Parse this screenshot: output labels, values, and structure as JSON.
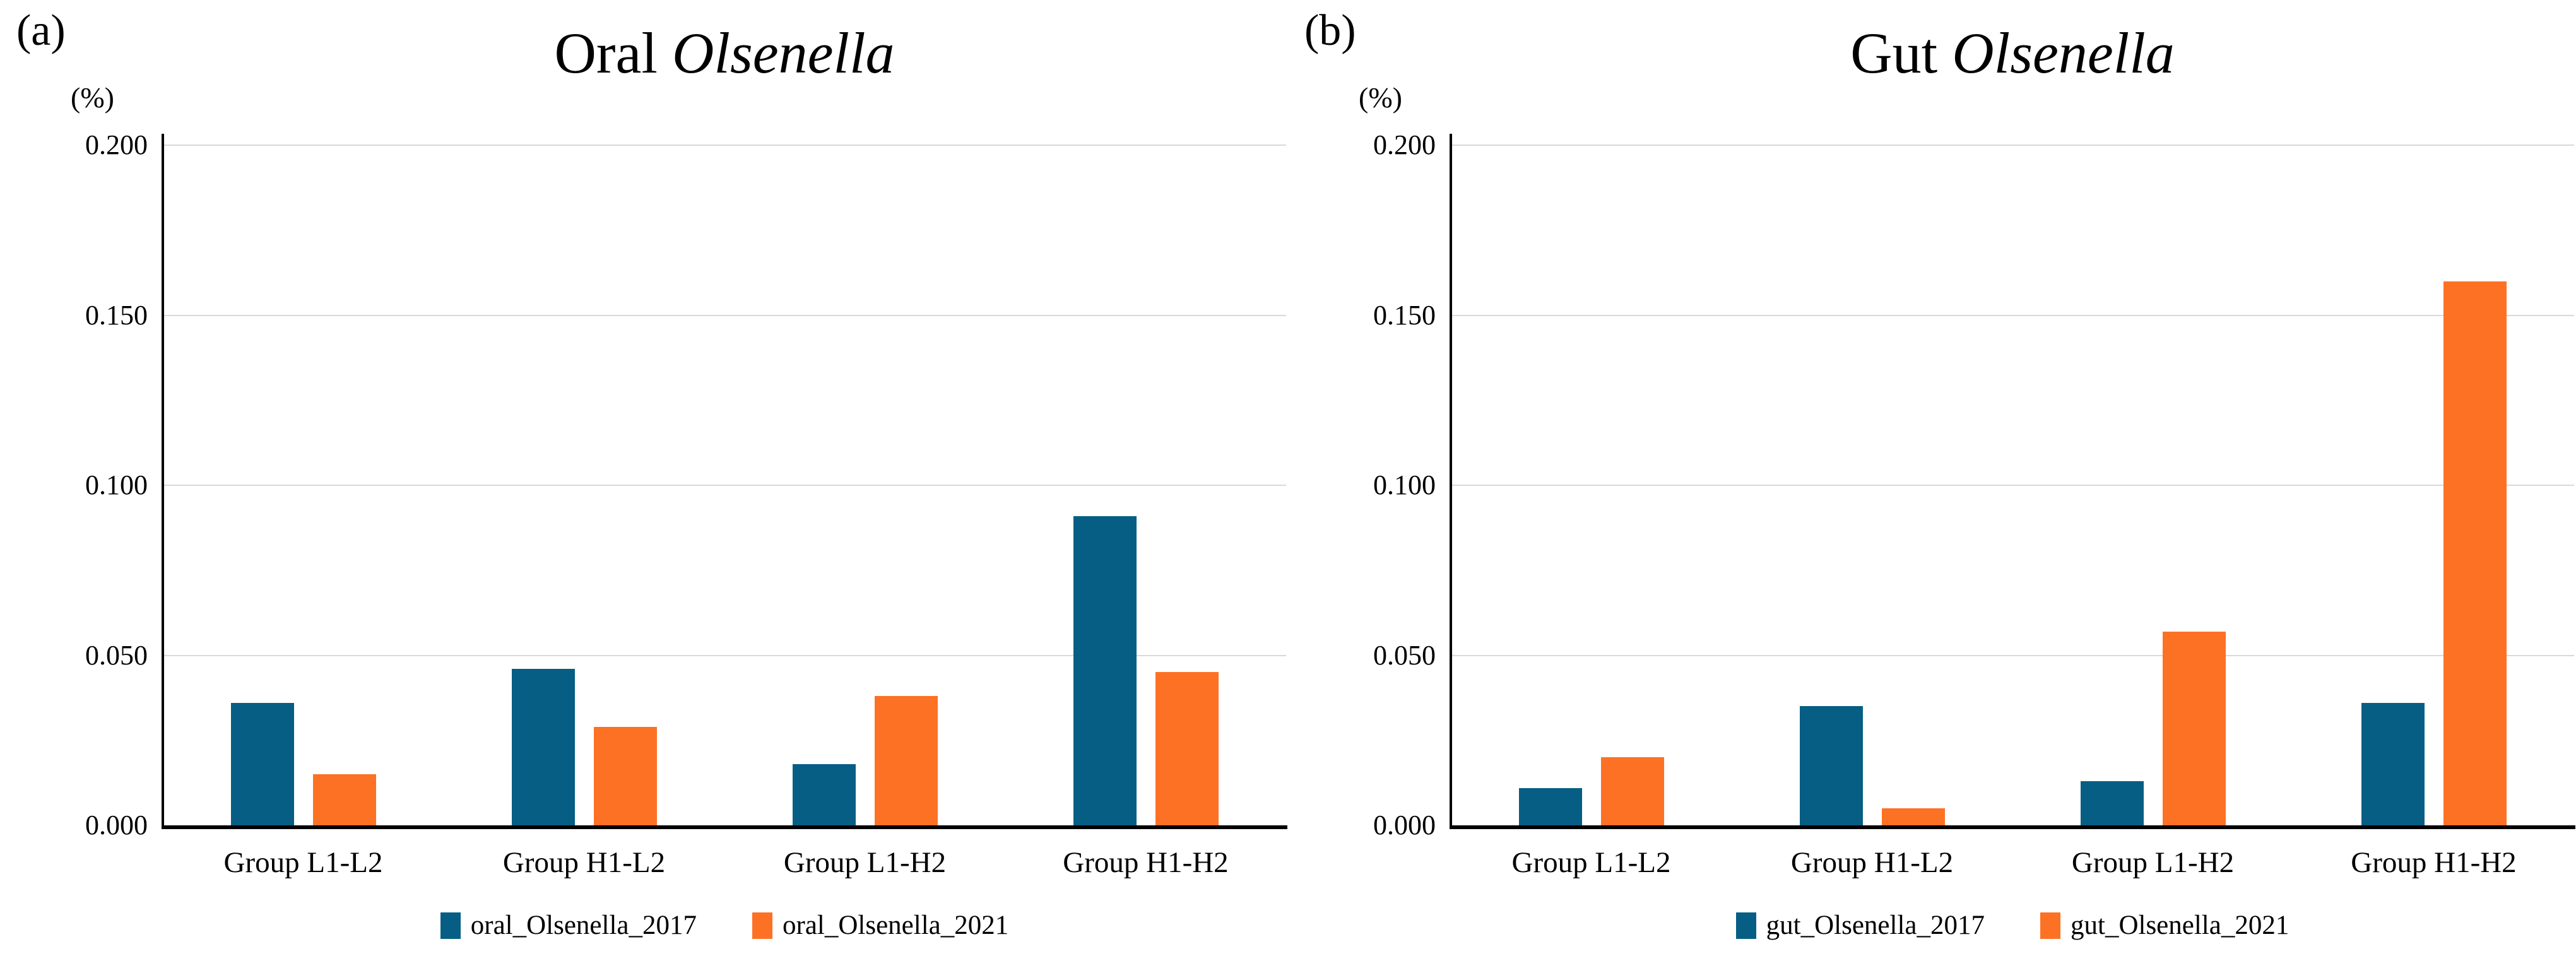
{
  "panels": [
    {
      "corner_label": "(a)",
      "title_regular": "Oral",
      "title_italic": "Olsenella",
      "unit_label": "(%)"
    },
    {
      "corner_label": "(b)",
      "title_regular": "Gut",
      "title_italic": "Olsenella",
      "unit_label": "(%)"
    }
  ],
  "colors": {
    "series_2017": "#065e84",
    "series_2021": "#fd7125",
    "gridline": "#d9d9d9",
    "axis": "#000000"
  },
  "chart_data": [
    {
      "type": "bar",
      "title": "Oral Olsenella",
      "title_italic_part": "Olsenella",
      "ylabel": "(%)",
      "ylim": [
        0,
        0.2
      ],
      "grid": true,
      "legend_position": "bottom",
      "yticks": [
        "0.200",
        "0.150",
        "0.100",
        "0.050",
        "0.000"
      ],
      "ytick_values": [
        0.2,
        0.15,
        0.1,
        0.05,
        0.0
      ],
      "categories": [
        "Group L1-L2",
        "Group H1-L2",
        "Group L1-H2",
        "Group H1-H2"
      ],
      "series": [
        {
          "name": "oral_Olsenella_2017",
          "color": "#065e84",
          "values": [
            0.036,
            0.046,
            0.018,
            0.091
          ]
        },
        {
          "name": "oral_Olsenella_2021",
          "color": "#fd7125",
          "values": [
            0.015,
            0.029,
            0.038,
            0.045
          ]
        }
      ]
    },
    {
      "type": "bar",
      "title": "Gut Olsenella",
      "title_italic_part": "Olsenella",
      "ylabel": "(%)",
      "ylim": [
        0,
        0.2
      ],
      "grid": true,
      "legend_position": "bottom",
      "yticks": [
        "0.200",
        "0.150",
        "0.100",
        "0.050",
        "0.000"
      ],
      "ytick_values": [
        0.2,
        0.15,
        0.1,
        0.05,
        0.0
      ],
      "categories": [
        "Group L1-L2",
        "Group H1-L2",
        "Group L1-H2",
        "Group H1-H2"
      ],
      "series": [
        {
          "name": "gut_Olsenella_2017",
          "color": "#065e84",
          "values": [
            0.011,
            0.035,
            0.013,
            0.036
          ]
        },
        {
          "name": "gut_Olsenella_2021",
          "color": "#fd7125",
          "values": [
            0.02,
            0.005,
            0.057,
            0.16
          ]
        }
      ]
    }
  ]
}
